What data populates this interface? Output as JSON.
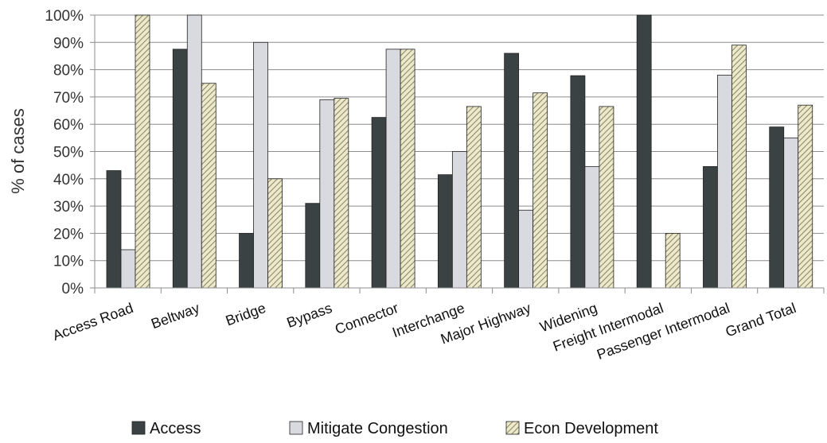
{
  "chart_data": {
    "type": "bar",
    "title": "",
    "xlabel": "",
    "ylabel": "% of cases",
    "ylim": [
      0,
      100
    ],
    "yticks": [
      "0%",
      "10%",
      "20%",
      "30%",
      "40%",
      "50%",
      "60%",
      "70%",
      "80%",
      "90%",
      "100%"
    ],
    "grid": true,
    "legend_position": "bottom",
    "categories": [
      "Access Road",
      "Beltway",
      "Bridge",
      "Bypass",
      "Connector",
      "Interchange",
      "Major Highway",
      "Widening",
      "Freight  Intermodal",
      "Passenger Intermodal",
      "Grand Total"
    ],
    "series": [
      {
        "name": "Access",
        "color": "#3b4243",
        "values": [
          43,
          87.5,
          20,
          31,
          62.5,
          41.5,
          86,
          77.8,
          100,
          44.5,
          59
        ]
      },
      {
        "name": "Mitigate Congestion",
        "color": "#d9dadf",
        "values": [
          14,
          100,
          90,
          69,
          87.5,
          50,
          28.5,
          44.5,
          0,
          78,
          55
        ]
      },
      {
        "name": "Econ Development",
        "color": "#e8e3c0",
        "pattern": "diagonal-hatch",
        "values": [
          100,
          75,
          40,
          69.5,
          87.5,
          66.5,
          71.5,
          66.5,
          20,
          89,
          67
        ]
      }
    ]
  }
}
